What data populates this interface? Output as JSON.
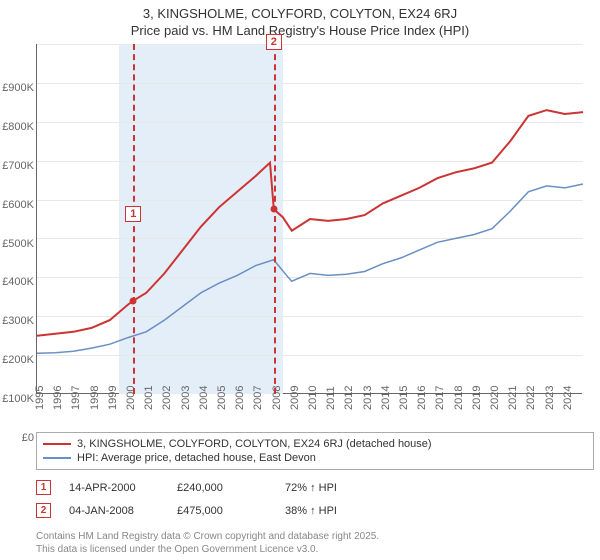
{
  "title": {
    "line1": "3, KINGSHOLME, COLYFORD, COLYTON, EX24 6RJ",
    "line2": "Price paid vs. HM Land Registry's House Price Index (HPI)"
  },
  "chart": {
    "type": "line",
    "background_color": "#ffffff",
    "shaded_band_color": "#e4eef9",
    "shaded_band_xrange": [
      1999.5,
      2008.5
    ],
    "grid_color": "#e8e8e8",
    "axis_color": "#666666",
    "xlim": [
      1995,
      2025
    ],
    "ylim": [
      0,
      900000
    ],
    "ytick_step": 100000,
    "y_tick_labels": [
      "£0",
      "£100K",
      "£200K",
      "£300K",
      "£400K",
      "£500K",
      "£600K",
      "£700K",
      "£800K",
      "£900K"
    ],
    "x_tick_labels": [
      "1995",
      "1996",
      "1997",
      "1998",
      "1999",
      "2000",
      "2001",
      "2002",
      "2003",
      "2004",
      "2005",
      "2006",
      "2007",
      "2008",
      "2009",
      "2010",
      "2011",
      "2012",
      "2013",
      "2014",
      "2015",
      "2016",
      "2017",
      "2018",
      "2019",
      "2020",
      "2021",
      "2022",
      "2023",
      "2024"
    ],
    "series": [
      {
        "name": "3, KINGSHOLME, COLYFORD, COLYTON, EX24 6RJ (detached house)",
        "color": "#cc3333",
        "line_width": 2,
        "data": [
          [
            1995,
            150000
          ],
          [
            1996,
            155000
          ],
          [
            1997,
            160000
          ],
          [
            1998,
            170000
          ],
          [
            1999,
            190000
          ],
          [
            2000,
            230000
          ],
          [
            2000.29,
            240000
          ],
          [
            2001,
            260000
          ],
          [
            2002,
            310000
          ],
          [
            2003,
            370000
          ],
          [
            2004,
            430000
          ],
          [
            2005,
            480000
          ],
          [
            2006,
            520000
          ],
          [
            2007,
            560000
          ],
          [
            2007.8,
            595000
          ],
          [
            2008.01,
            475000
          ],
          [
            2008.5,
            455000
          ],
          [
            2009,
            420000
          ],
          [
            2010,
            450000
          ],
          [
            2011,
            445000
          ],
          [
            2012,
            450000
          ],
          [
            2013,
            460000
          ],
          [
            2014,
            490000
          ],
          [
            2015,
            510000
          ],
          [
            2016,
            530000
          ],
          [
            2017,
            555000
          ],
          [
            2018,
            570000
          ],
          [
            2019,
            580000
          ],
          [
            2020,
            595000
          ],
          [
            2021,
            650000
          ],
          [
            2022,
            715000
          ],
          [
            2023,
            730000
          ],
          [
            2024,
            720000
          ],
          [
            2025,
            725000
          ]
        ]
      },
      {
        "name": "HPI: Average price, detached house, East Devon",
        "color": "#6a8fc5",
        "line_width": 1.5,
        "data": [
          [
            1995,
            105000
          ],
          [
            1996,
            106000
          ],
          [
            1997,
            110000
          ],
          [
            1998,
            118000
          ],
          [
            1999,
            128000
          ],
          [
            2000,
            145000
          ],
          [
            2001,
            160000
          ],
          [
            2002,
            190000
          ],
          [
            2003,
            225000
          ],
          [
            2004,
            260000
          ],
          [
            2005,
            285000
          ],
          [
            2006,
            305000
          ],
          [
            2007,
            330000
          ],
          [
            2008,
            345000
          ],
          [
            2008.8,
            300000
          ],
          [
            2009,
            290000
          ],
          [
            2010,
            310000
          ],
          [
            2011,
            305000
          ],
          [
            2012,
            308000
          ],
          [
            2013,
            315000
          ],
          [
            2014,
            335000
          ],
          [
            2015,
            350000
          ],
          [
            2016,
            370000
          ],
          [
            2017,
            390000
          ],
          [
            2018,
            400000
          ],
          [
            2019,
            410000
          ],
          [
            2020,
            425000
          ],
          [
            2021,
            470000
          ],
          [
            2022,
            520000
          ],
          [
            2023,
            535000
          ],
          [
            2024,
            530000
          ],
          [
            2025,
            540000
          ]
        ]
      }
    ],
    "markers": [
      {
        "n": "1",
        "x": 2000.29,
        "y": 240000,
        "label_y_offset": -95
      },
      {
        "n": "2",
        "x": 2008.01,
        "y": 475000,
        "label_y_offset": -175
      }
    ]
  },
  "legend": {
    "rows": [
      {
        "color": "#cc3333",
        "width": 2,
        "label": "3, KINGSHOLME, COLYFORD, COLYTON, EX24 6RJ (detached house)"
      },
      {
        "color": "#6a8fc5",
        "width": 1.5,
        "label": "HPI: Average price, detached house, East Devon"
      }
    ]
  },
  "transactions": [
    {
      "n": "1",
      "date": "14-APR-2000",
      "price": "£240,000",
      "delta": "72% ↑ HPI"
    },
    {
      "n": "2",
      "date": "04-JAN-2008",
      "price": "£475,000",
      "delta": "38% ↑ HPI"
    }
  ],
  "footer": {
    "line1": "Contains HM Land Registry data © Crown copyright and database right 2025.",
    "line2": "This data is licensed under the Open Government Licence v3.0."
  }
}
